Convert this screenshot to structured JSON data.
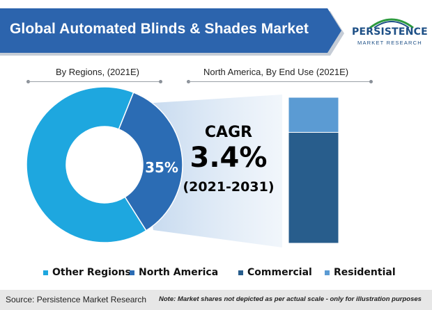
{
  "title": "Global Automated Blinds & Shades Market",
  "logo": {
    "name": "PERSISTENCE",
    "subtitle": "MARKET RESEARCH"
  },
  "left_section": "By Regions, (2021E)",
  "right_section": "North America, By End Use (2021E)",
  "cagr": {
    "label": "CAGR",
    "value": "3.4%",
    "period": "(2021-2031)"
  },
  "colors": {
    "title_bar": "#2c64ad",
    "other_regions": "#1ea7df",
    "north_america": "#2b6cb4",
    "commercial": "#285d8c",
    "residential": "#5b9bd3"
  },
  "chart_data": [
    {
      "type": "pie",
      "subtitle": "By Regions, (2021E)",
      "categories": [
        "Other Regions",
        "North America"
      ],
      "values": [
        65,
        35
      ],
      "data_labels": [
        "",
        "35%"
      ],
      "legend": "bottom"
    },
    {
      "type": "bar",
      "subtitle": "North America, By End Use (2021E)",
      "stacked": true,
      "categories": [
        "Commercial",
        "Residential"
      ],
      "values": [
        76,
        24
      ],
      "legend": "bottom"
    }
  ],
  "legend": [
    "Other Regions",
    "North America",
    "Commercial",
    "Residential"
  ],
  "footer": {
    "source": "Source: Persistence Market Research",
    "note": "Note: Market shares not depicted as per actual scale - only for illustration purposes"
  }
}
